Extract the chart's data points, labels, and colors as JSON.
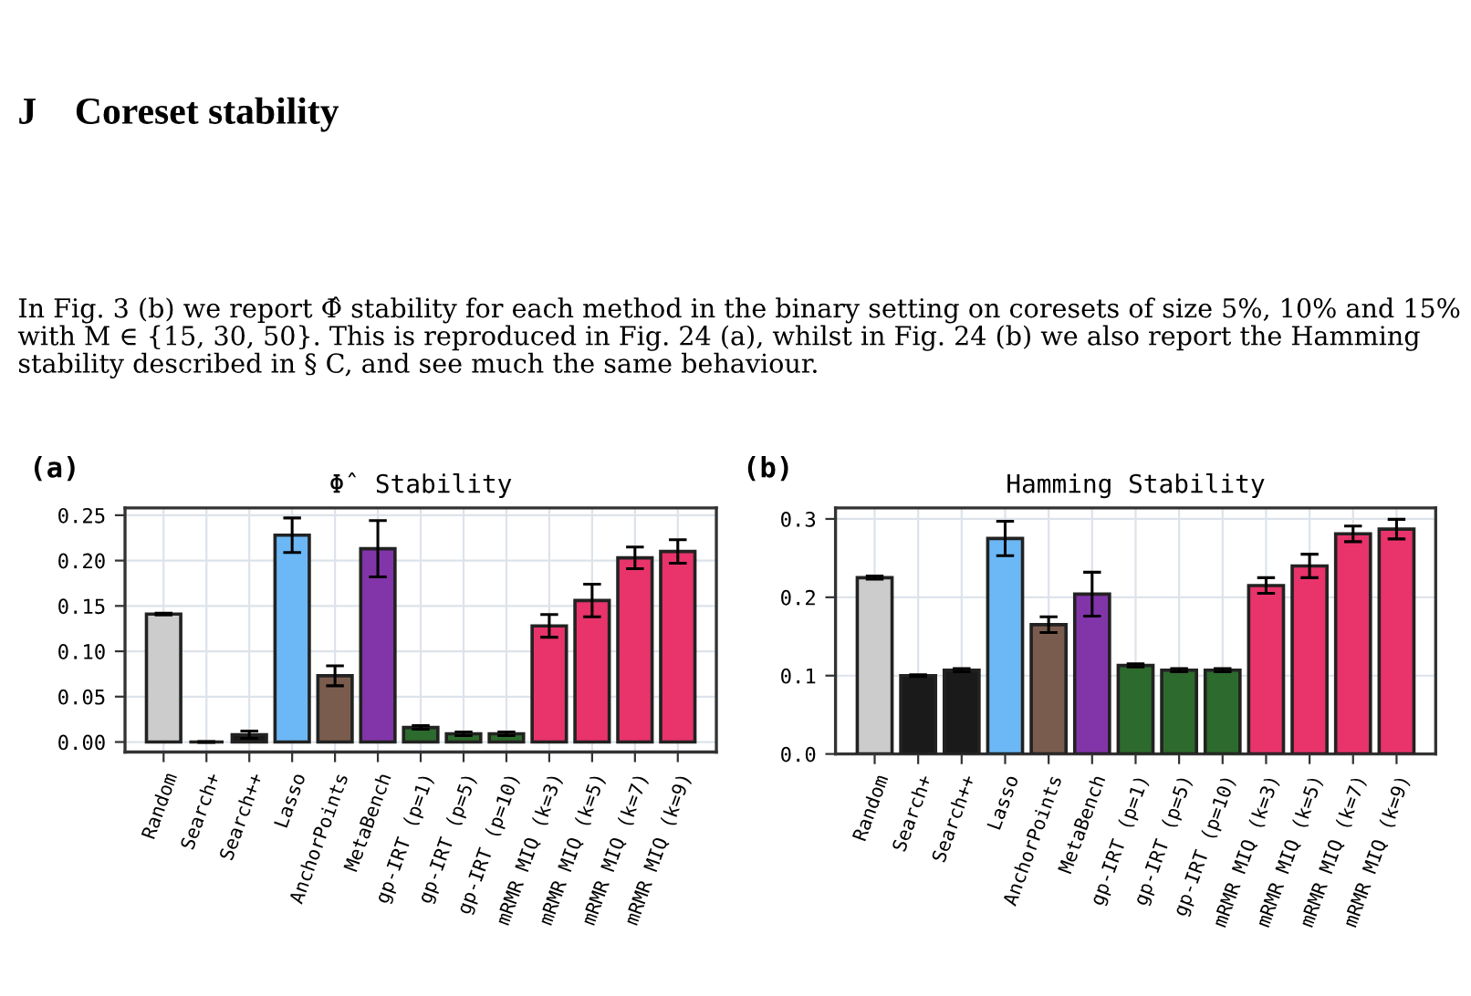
{
  "chart_data": [
    {
      "type": "bar",
      "title": "Φ̂ Stability",
      "annotations": [
        "J    Coreset stability",
        "In Fig. 3 (b) we report Φ̂ stability for each method in the binary setting on coresets of size 5%, 10% and 15% with M ∈ {15, 30, 50}. This is reproduced in Fig. 24 (a), whilst in Fig. 24 (b) we also report the Hamming stability described in § C, and see much the same behaviour.",
        "(a)"
      ],
      "categories": [
        "Random",
        "Search+",
        "Search++",
        "Lasso",
        "AnchorPoints",
        "MetaBench",
        "gp-IRT (p=1)",
        "gp-IRT (p=5)",
        "gp-IRT (p=10)",
        "mRMR MIQ (k=3)",
        "mRMR MIQ (k=5)",
        "mRMR MIQ (k=7)",
        "mRMR MIQ (k=9)"
      ],
      "values": [
        0.141,
        0.0,
        0.008,
        0.228,
        0.073,
        0.213,
        0.016,
        0.009,
        0.009,
        0.128,
        0.156,
        0.203,
        0.21
      ],
      "errors": [
        0.001,
        0.0005,
        0.004,
        0.019,
        0.011,
        0.031,
        0.002,
        0.002,
        0.002,
        0.0125,
        0.018,
        0.012,
        0.013
      ],
      "colors": [
        "#cccccc",
        "#1a1a1a",
        "#1a1a1a",
        "#6cb8f6",
        "#7a5c4e",
        "#8235a8",
        "#2d6a2d",
        "#2d6a2d",
        "#2d6a2d",
        "#e8336b",
        "#e8336b",
        "#e8336b",
        "#e8336b"
      ],
      "ylim": [
        -0.011,
        0.258
      ],
      "yticks": [
        {
          "value": 0,
          "label": "0.00"
        },
        0.05,
        {
          "value": 0.1,
          "label": "0.10"
        },
        0.15,
        {
          "value": 0.2,
          "label": "0.20"
        },
        0.25
      ],
      "grid": true
    },
    {
      "type": "bar",
      "title": "Hamming Stability",
      "annotations": [
        "(b)"
      ],
      "categories": [
        "Random",
        "Search+",
        "Search++",
        "Lasso",
        "AnchorPoints",
        "MetaBench",
        "gp-IRT (p=1)",
        "gp-IRT (p=5)",
        "gp-IRT (p=10)",
        "mRMR MIQ (k=3)",
        "mRMR MIQ (k=5)",
        "mRMR MIQ (k=7)",
        "mRMR MIQ (k=9)"
      ],
      "values": [
        0.225,
        0.1,
        0.107,
        0.275,
        0.165,
        0.204,
        0.113,
        0.107,
        0.107,
        0.215,
        0.24,
        0.281,
        0.287
      ],
      "errors": [
        0.002,
        0.001,
        0.002,
        0.022,
        0.01,
        0.028,
        0.002,
        0.002,
        0.002,
        0.01,
        0.015,
        0.01,
        0.0125
      ],
      "colors": [
        "#cccccc",
        "#1a1a1a",
        "#1a1a1a",
        "#6cb8f6",
        "#7a5c4e",
        "#8235a8",
        "#2d6a2d",
        "#2d6a2d",
        "#2d6a2d",
        "#e8336b",
        "#e8336b",
        "#e8336b",
        "#e8336b"
      ],
      "ylim": [
        0,
        0.314
      ],
      "yticks": [
        {
          "value": 0,
          "label": "0.0"
        },
        0.1,
        0.2,
        0.3
      ],
      "grid": true
    }
  ]
}
